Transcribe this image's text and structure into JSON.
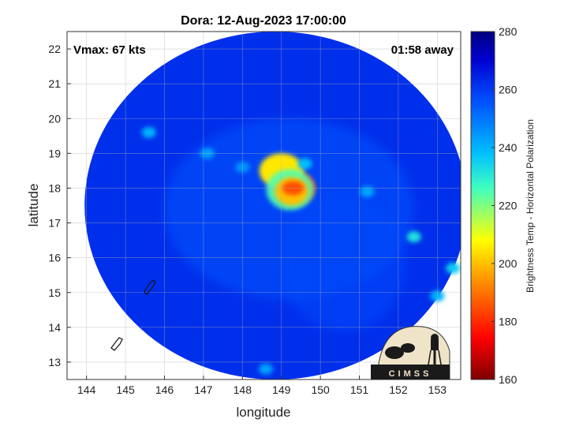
{
  "chart_data": {
    "type": "heatmap",
    "title": "Dora: 12-Aug-2023 17:00:00",
    "annotation_left": "Vmax: 67 kts",
    "annotation_right": "01:58 away",
    "xlabel": "longitude",
    "ylabel": "latitude",
    "xlim": [
      143.5,
      153.6
    ],
    "ylim": [
      12.5,
      22.5
    ],
    "xticks": [
      144,
      145,
      146,
      147,
      148,
      149,
      150,
      151,
      152,
      153
    ],
    "yticks": [
      13,
      14,
      15,
      16,
      17,
      18,
      19,
      20,
      21,
      22
    ],
    "grid": true,
    "colorbar": {
      "label": "Brightness Temp - Horizontal Polarization",
      "min": 160,
      "max": 280,
      "ticks": [
        160,
        180,
        200,
        220,
        240,
        260,
        280
      ]
    },
    "swath": {
      "center_lon": 148.85,
      "center_lat": 17.5,
      "radius_lon": 4.9,
      "radius_lat": 5.0
    },
    "background_temp": 262,
    "storm_center": {
      "lon": 149.3,
      "lat": 18.0,
      "min_temp": 185
    },
    "features": [
      {
        "lon": 149.3,
        "lat": 18.0,
        "temp": 185
      },
      {
        "lon": 149.0,
        "lat": 18.5,
        "temp": 205
      },
      {
        "lon": 149.6,
        "lat": 18.7,
        "temp": 238
      },
      {
        "lon": 148.0,
        "lat": 18.6,
        "temp": 245
      },
      {
        "lon": 145.6,
        "lat": 19.6,
        "temp": 240
      },
      {
        "lon": 147.1,
        "lat": 19.0,
        "temp": 243
      },
      {
        "lon": 151.2,
        "lat": 17.9,
        "temp": 242
      },
      {
        "lon": 152.4,
        "lat": 16.6,
        "temp": 232
      },
      {
        "lon": 153.4,
        "lat": 15.7,
        "temp": 236
      },
      {
        "lon": 153.0,
        "lat": 14.9,
        "temp": 240
      },
      {
        "lon": 148.6,
        "lat": 12.8,
        "temp": 243
      }
    ],
    "logo_text": "CIMSS"
  }
}
